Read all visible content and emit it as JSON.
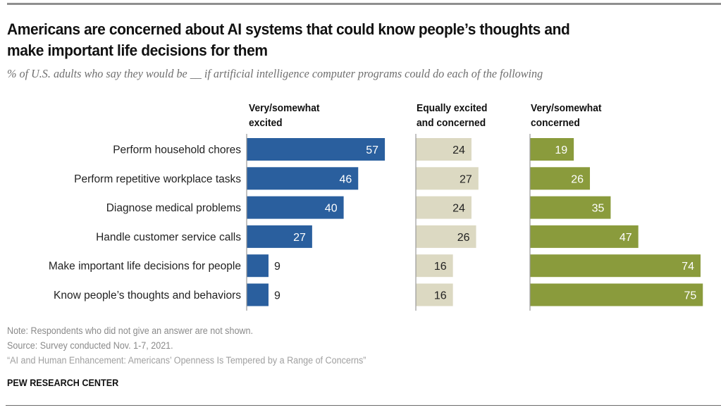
{
  "chart_data": {
    "type": "bar",
    "orientation": "horizontal",
    "layout": "small-multiples",
    "title": "Americans are concerned about AI systems that could know people’s thoughts and make important life decisions for them",
    "title_lines": [
      "Americans are concerned about AI systems that could know people’s thoughts and",
      "make important life decisions for them"
    ],
    "subtitle": "% of U.S. adults who say they would be __ if artificial intelligence computer programs could do each of the following",
    "categories": [
      "Perform household chores",
      "Perform repetitive workplace tasks",
      "Diagnose medical problems",
      "Handle customer service calls",
      "Make important life decisions for people",
      "Know people’s thoughts and behaviors"
    ],
    "series": [
      {
        "name": "Very/somewhat excited",
        "header_lines": [
          "Very/somewhat",
          "excited"
        ],
        "color": "#2a5f9e",
        "label_color": "#ffffff",
        "values": [
          57,
          46,
          40,
          27,
          9,
          9
        ]
      },
      {
        "name": "Equally excited and concerned",
        "header_lines": [
          "Equally excited",
          "and concerned"
        ],
        "color": "#dcd9c2",
        "label_color": "#222222",
        "values": [
          24,
          27,
          24,
          26,
          16,
          16
        ]
      },
      {
        "name": "Very/somewhat concerned",
        "header_lines": [
          "Very/somewhat",
          "concerned"
        ],
        "color": "#8a9b3c",
        "label_color": "#ffffff",
        "values": [
          19,
          26,
          35,
          47,
          74,
          75
        ]
      }
    ],
    "xlabel": "",
    "ylabel": "",
    "xlim": [
      0,
      100
    ],
    "grid": false,
    "legend": "column-headers-top"
  },
  "notes": {
    "note": "Note: Respondents who did not give an answer are not shown.",
    "source": "Source: Survey conducted Nov. 1-7, 2021.",
    "report": "“AI and Human Enhancement: Americans’ Openness Is Tempered by a Range of Concerns”"
  },
  "brand": "PEW RESEARCH CENTER"
}
